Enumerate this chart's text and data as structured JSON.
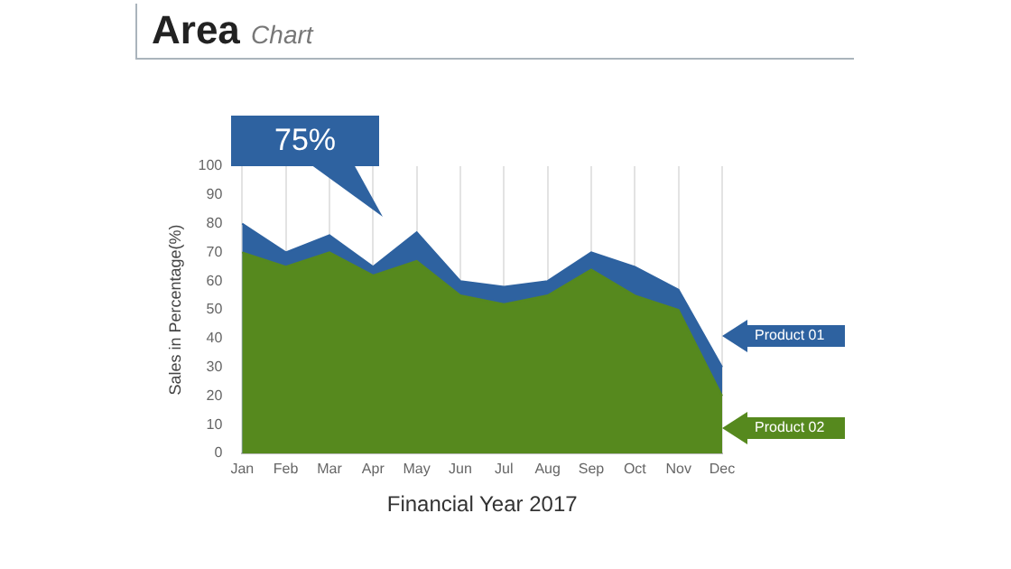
{
  "chart_data": {
    "type": "area",
    "title": "Area",
    "subtitle": "Chart",
    "xlabel": "Financial Year 2017",
    "ylabel": "Sales in Percentage(%)",
    "annotations": [
      "75%"
    ],
    "categories": [
      "Jan",
      "Feb",
      "Mar",
      "Apr",
      "May",
      "Jun",
      "Jul",
      "Aug",
      "Sep",
      "Oct",
      "Nov",
      "Dec"
    ],
    "series": [
      {
        "name": "Product 01",
        "color": "#2e62a0",
        "values": [
          80,
          70,
          76,
          65,
          77,
          60,
          58,
          60,
          70,
          65,
          57,
          30
        ]
      },
      {
        "name": "Product 02",
        "color": "#56891e",
        "values": [
          70,
          65,
          70,
          62,
          67,
          55,
          52,
          55,
          64,
          55,
          50,
          20
        ]
      }
    ],
    "ylim": [
      0,
      100
    ],
    "yticks": [
      0,
      10,
      20,
      30,
      40,
      50,
      60,
      70,
      80,
      90,
      100
    ],
    "grid": "x",
    "marker": "none"
  }
}
